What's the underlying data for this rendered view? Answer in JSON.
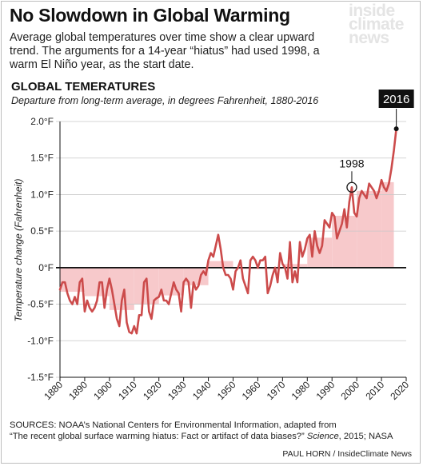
{
  "header": {
    "headline": "No Slowdown in Global Warming",
    "dek": "Average global temperatures over time show a clear upward trend. The arguments for a 14-year “hiatus” had used 1998, a warm El Niño year, as the start date.",
    "logo_lines": [
      "inside",
      "climate",
      "news"
    ]
  },
  "chart_data": {
    "type": "line",
    "title": "GLOBAL TEMERATURES",
    "subtitle": "Departure from long-term average, in degrees Fahrenheit, 1880-2016",
    "ylabel": "Temperature change (Fahrenheit)",
    "xlabel": "",
    "xlim": [
      1880,
      2020
    ],
    "ylim": [
      -1.5,
      2.0
    ],
    "x_ticks": [
      1880,
      1890,
      1900,
      1910,
      1920,
      1930,
      1940,
      1950,
      1960,
      1970,
      1980,
      1990,
      2000,
      2010,
      2020
    ],
    "y_ticks": [
      {
        "value": 2.0,
        "label": "2.0°F"
      },
      {
        "value": 1.5,
        "label": "1.5°F"
      },
      {
        "value": 1.0,
        "label": "1.0°F"
      },
      {
        "value": 0.5,
        "label": "0.5°F"
      },
      {
        "value": 0,
        "label": "0°F"
      },
      {
        "value": -0.5,
        "label": "-0.5°F"
      },
      {
        "value": -1.0,
        "label": "-1.0°F"
      },
      {
        "value": -1.5,
        "label": "-1.5°F"
      }
    ],
    "line_color": "#cc4b4b",
    "bar_color": "#f7c9cb",
    "annual": {
      "start_year": 1880,
      "values": [
        -0.3,
        -0.2,
        -0.2,
        -0.35,
        -0.45,
        -0.5,
        -0.4,
        -0.5,
        -0.2,
        -0.15,
        -0.6,
        -0.45,
        -0.55,
        -0.6,
        -0.55,
        -0.45,
        -0.2,
        -0.2,
        -0.55,
        -0.3,
        -0.15,
        -0.3,
        -0.5,
        -0.7,
        -0.8,
        -0.45,
        -0.3,
        -0.75,
        -0.88,
        -0.9,
        -0.8,
        -0.9,
        -0.65,
        -0.65,
        -0.2,
        -0.15,
        -0.6,
        -0.7,
        -0.45,
        -0.42,
        -0.4,
        -0.3,
        -0.45,
        -0.45,
        -0.5,
        -0.35,
        -0.2,
        -0.3,
        -0.35,
        -0.6,
        -0.2,
        -0.15,
        -0.2,
        -0.55,
        -0.2,
        -0.3,
        -0.25,
        -0.1,
        -0.05,
        -0.1,
        0.1,
        0.2,
        0.15,
        0.3,
        0.45,
        0.25,
        0.0,
        -0.1,
        -0.1,
        -0.15,
        -0.3,
        -0.05,
        0.0,
        0.1,
        -0.15,
        -0.25,
        -0.35,
        0.1,
        0.15,
        0.1,
        0.0,
        0.1,
        0.1,
        0.15,
        -0.35,
        -0.25,
        -0.1,
        0.0,
        -0.2,
        0.2,
        0.05,
        0.0,
        -0.15,
        0.35,
        -0.2,
        -0.05,
        -0.2,
        0.35,
        0.15,
        0.25,
        0.4,
        0.45,
        0.15,
        0.5,
        0.3,
        0.2,
        0.3,
        0.65,
        0.6,
        0.55,
        0.75,
        0.7,
        0.4,
        0.5,
        0.6,
        0.8,
        0.55,
        0.9,
        1.1,
        0.75,
        0.7,
        0.95,
        1.05,
        1.0,
        0.95,
        1.15,
        1.1,
        1.05,
        0.95,
        1.05,
        1.2,
        1.1,
        1.05,
        1.15,
        1.35,
        1.6,
        1.9
      ]
    },
    "decades": [
      {
        "start": 1880,
        "end": 1890,
        "value": -0.33
      },
      {
        "start": 1890,
        "end": 1900,
        "value": -0.39
      },
      {
        "start": 1900,
        "end": 1910,
        "value": -0.58
      },
      {
        "start": 1910,
        "end": 1920,
        "value": -0.5
      },
      {
        "start": 1920,
        "end": 1930,
        "value": -0.38
      },
      {
        "start": 1930,
        "end": 1940,
        "value": -0.24
      },
      {
        "start": 1940,
        "end": 1950,
        "value": 0.09
      },
      {
        "start": 1950,
        "end": 1960,
        "value": -0.02
      },
      {
        "start": 1960,
        "end": 1970,
        "value": -0.02
      },
      {
        "start": 1970,
        "end": 1980,
        "value": 0.05
      },
      {
        "start": 1980,
        "end": 1990,
        "value": 0.41
      },
      {
        "start": 1990,
        "end": 2000,
        "value": 0.71
      },
      {
        "start": 2000,
        "end": 2010,
        "value": 1.05
      },
      {
        "start": 2010,
        "end": 2015,
        "value": 1.17
      }
    ],
    "annotations": [
      {
        "year": 1998,
        "value": 1.1,
        "label": "1998",
        "style": "circle"
      },
      {
        "year": 2016,
        "value": 1.9,
        "label": "2016",
        "style": "box"
      }
    ]
  },
  "footer": {
    "sources_line1": "SOURCES: NOAA’s National Centers for Environmental Information, adapted from",
    "sources_line2_plain": "“The recent global surface warming hiatus: Fact or artifact of data biases?” ",
    "sources_line2_italic": "Science",
    "sources_line2_end": ", 2015; NASA",
    "credit": "PAUL HORN / InsideClimate News"
  }
}
